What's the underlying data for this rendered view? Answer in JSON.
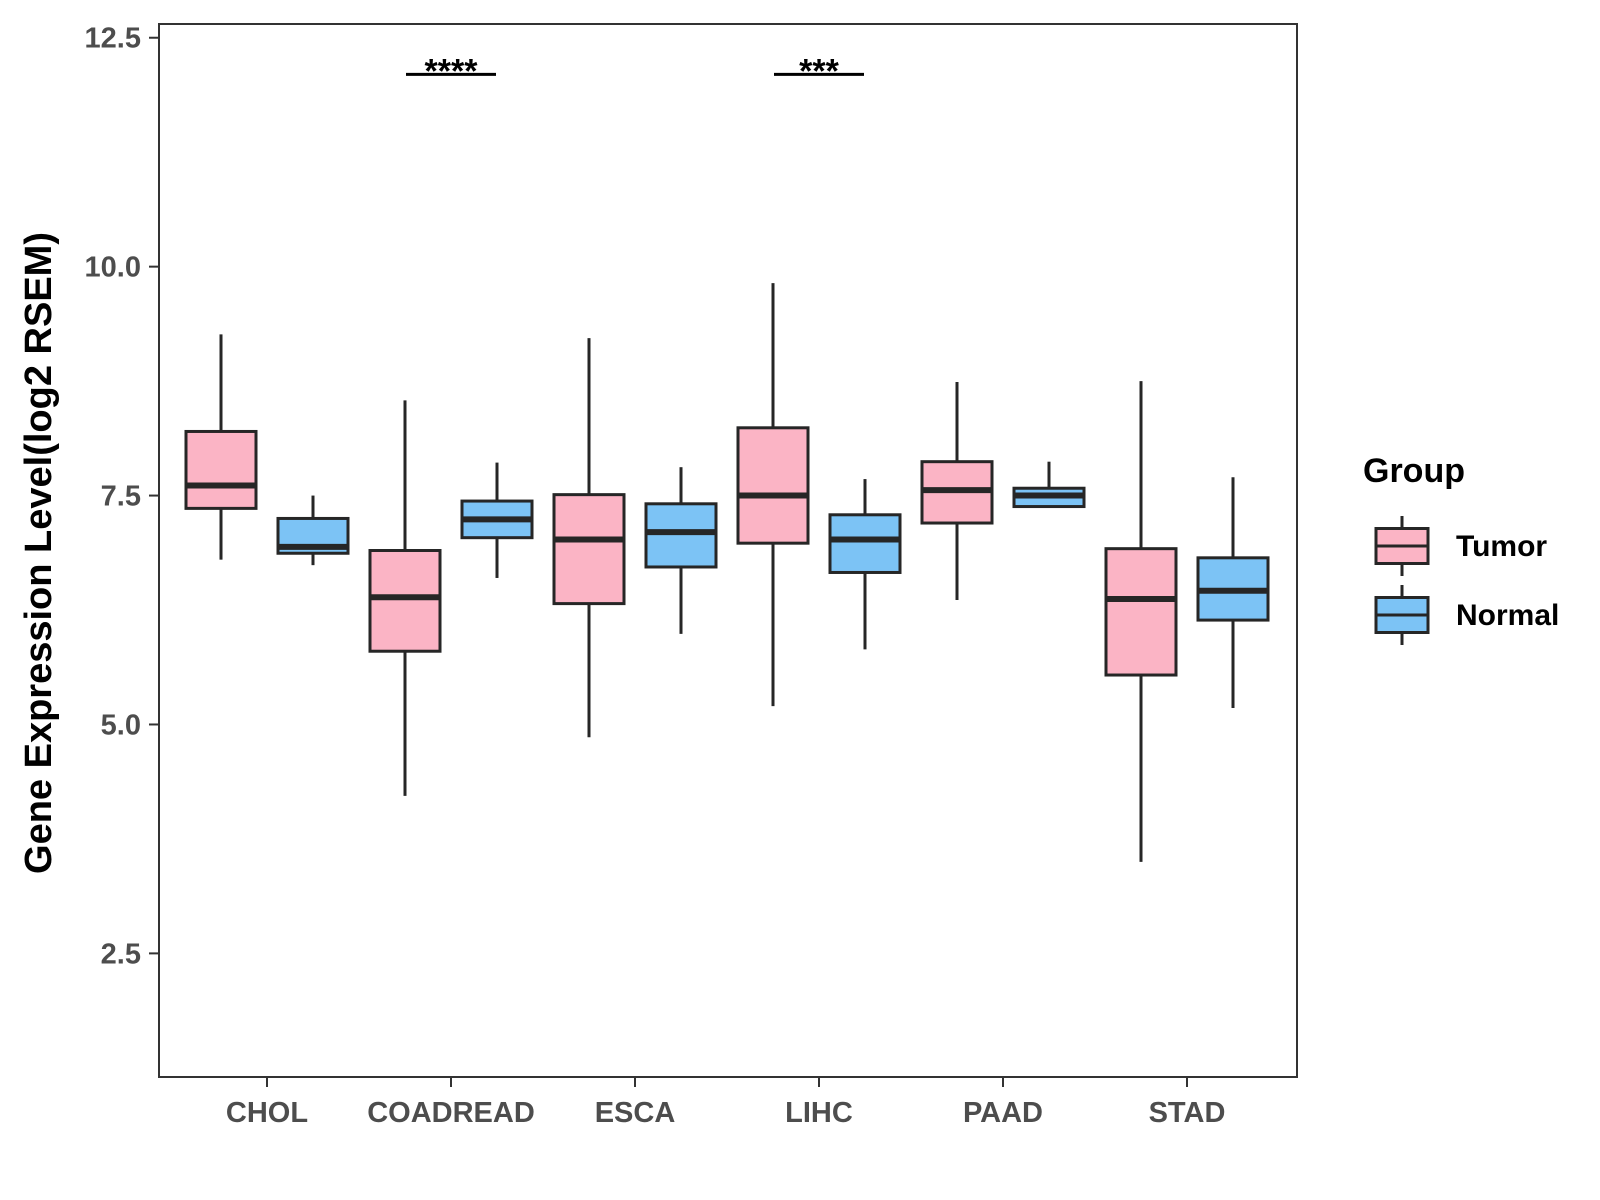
{
  "chart_data": {
    "type": "boxplot",
    "title": "",
    "xlabel": "",
    "ylabel": "Gene Expression Level(log2 RSEM)",
    "ylim": [
      1.15,
      12.65
    ],
    "yticks": [
      "2.5",
      "5.0",
      "7.5",
      "10.0",
      "12.5"
    ],
    "ytick_values": [
      2.5,
      5.0,
      7.5,
      10.0,
      12.5
    ],
    "categories": [
      "CHOL",
      "COADREAD",
      "ESCA",
      "LIHC",
      "PAAD",
      "STAD"
    ],
    "legend": {
      "title": "Group",
      "position": "right",
      "entries": [
        "Tumor",
        "Normal"
      ]
    },
    "colors": {
      "Tumor": "#fbb4c5",
      "Normal": "#7cc3f5",
      "outline": "#262626"
    },
    "series": [
      {
        "name": "Tumor",
        "boxes": [
          {
            "category": "CHOL",
            "min": 6.8,
            "q1": 7.36,
            "median": 7.61,
            "q3": 8.2,
            "max": 9.26
          },
          {
            "category": "COADREAD",
            "min": 4.22,
            "q1": 5.8,
            "median": 6.39,
            "q3": 6.9,
            "max": 8.54
          },
          {
            "category": "ESCA",
            "min": 4.86,
            "q1": 6.32,
            "median": 7.02,
            "q3": 7.51,
            "max": 9.22
          },
          {
            "category": "LIHC",
            "min": 5.2,
            "q1": 6.98,
            "median": 7.5,
            "q3": 8.24,
            "max": 9.82
          },
          {
            "category": "PAAD",
            "min": 6.36,
            "q1": 7.2,
            "median": 7.56,
            "q3": 7.87,
            "max": 8.74
          },
          {
            "category": "STAD",
            "min": 3.5,
            "q1": 5.54,
            "median": 6.37,
            "q3": 6.92,
            "max": 8.75
          }
        ]
      },
      {
        "name": "Normal",
        "boxes": [
          {
            "category": "CHOL",
            "min": 6.74,
            "q1": 6.87,
            "median": 6.94,
            "q3": 7.25,
            "max": 7.5
          },
          {
            "category": "COADREAD",
            "min": 6.6,
            "q1": 7.04,
            "median": 7.24,
            "q3": 7.44,
            "max": 7.86
          },
          {
            "category": "ESCA",
            "min": 5.99,
            "q1": 6.72,
            "median": 7.1,
            "q3": 7.41,
            "max": 7.81
          },
          {
            "category": "LIHC",
            "min": 5.82,
            "q1": 6.66,
            "median": 7.02,
            "q3": 7.29,
            "max": 7.68
          },
          {
            "category": "PAAD",
            "min": 7.38,
            "q1": 7.38,
            "median": 7.5,
            "q3": 7.58,
            "max": 7.87
          },
          {
            "category": "STAD",
            "min": 5.18,
            "q1": 6.14,
            "median": 6.46,
            "q3": 6.82,
            "max": 7.7
          }
        ]
      }
    ],
    "annotations": [
      {
        "category": "COADREAD",
        "label": "****",
        "y": 12.1
      },
      {
        "category": "LIHC",
        "label": "***",
        "y": 12.1
      }
    ]
  }
}
